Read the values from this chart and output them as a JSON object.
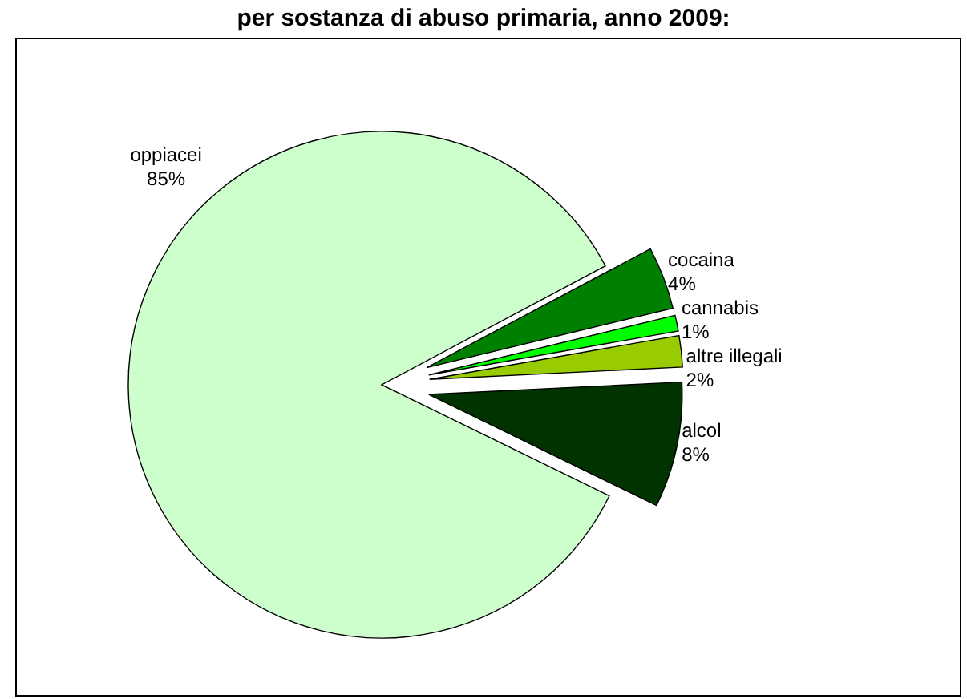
{
  "chart_data": {
    "type": "pie",
    "title": "per sostanza di abuso primaria, anno 2009:",
    "categories": [
      "oppiacei",
      "cocaina",
      "cannabis",
      "altre illegali",
      "alcol"
    ],
    "values": [
      85,
      4,
      1,
      2,
      8
    ],
    "colors": [
      "#ccffcc",
      "#008000",
      "#00ff00",
      "#99cc00",
      "#003300"
    ],
    "legend": false,
    "value_labels": [
      "85%",
      "4%",
      "1%",
      "2%",
      "8%"
    ]
  }
}
